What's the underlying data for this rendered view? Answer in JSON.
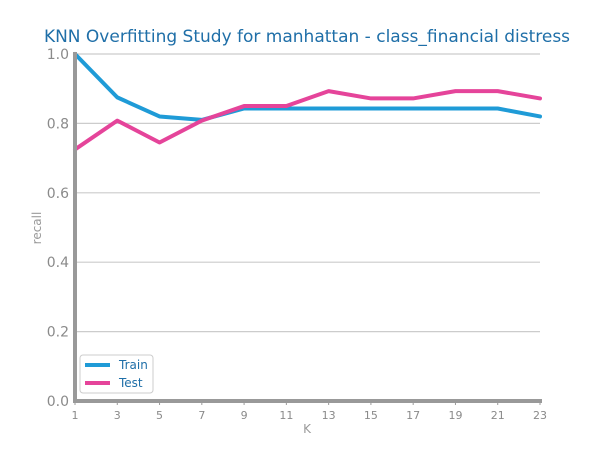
{
  "chart_data": {
    "type": "line",
    "title": "KNN Overfitting Study for manhattan - class_financial distress",
    "xlabel": "K",
    "ylabel": "recall",
    "x": [
      1,
      3,
      5,
      7,
      9,
      11,
      13,
      15,
      17,
      19,
      21,
      23
    ],
    "xticks": [
      "1",
      "3",
      "5",
      "7",
      "9",
      "11",
      "13",
      "15",
      "17",
      "19",
      "21",
      "23"
    ],
    "yticks": [
      "0.0",
      "0.2",
      "0.4",
      "0.6",
      "0.8",
      "1.0"
    ],
    "ylim": [
      0,
      1
    ],
    "xlim": [
      1,
      23
    ],
    "grid": "horizontal",
    "legend_position": "bottom-left",
    "series": [
      {
        "name": "Train",
        "color": "#1f9bd7",
        "values": [
          1.0,
          0.875,
          0.82,
          0.81,
          0.843,
          0.843,
          0.843,
          0.843,
          0.843,
          0.843,
          0.843,
          0.82
        ]
      },
      {
        "name": "Test",
        "color": "#e5449a",
        "values": [
          0.725,
          0.808,
          0.745,
          0.808,
          0.85,
          0.85,
          0.893,
          0.872,
          0.872,
          0.893,
          0.893,
          0.872
        ]
      }
    ],
    "colors": {
      "title": "#1f6fa8",
      "axis": "#999999",
      "grid": "#cccccc",
      "legend_text": "#1f6fa8"
    }
  }
}
